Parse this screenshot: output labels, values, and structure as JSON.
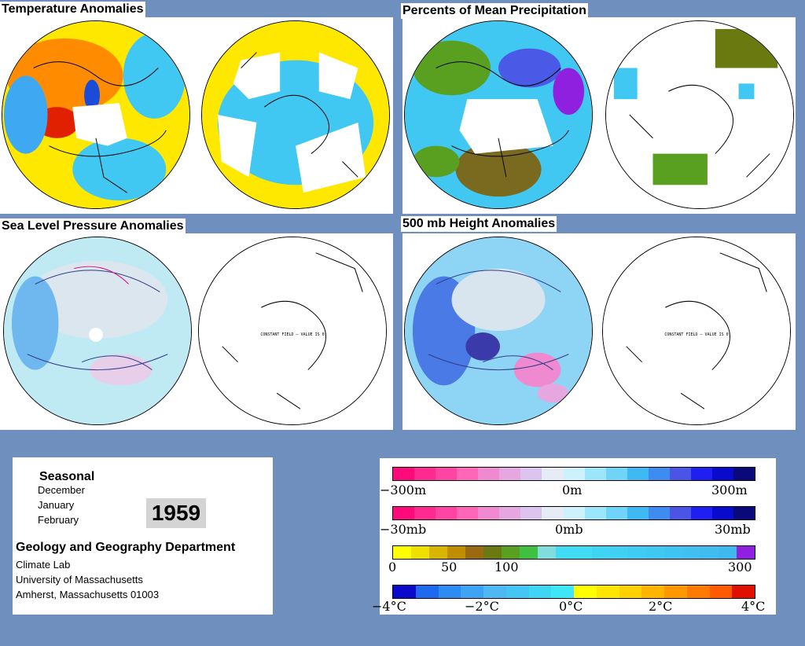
{
  "panels": {
    "temperature": {
      "title": "Temperature Anomalies"
    },
    "precipitation": {
      "title": "Percents of Mean Precipitation"
    },
    "slp": {
      "title": "Sea Level Pressure Anomalies",
      "right_note": "CONSTANT FIELD — VALUE IS 0"
    },
    "height500": {
      "title": "500 mb Height Anomalies",
      "right_note": "CONSTANT FIELD — VALUE IS 0"
    }
  },
  "info": {
    "season_label": "Seasonal",
    "months": [
      "December",
      "January",
      "February"
    ],
    "year": "1959",
    "department": "Geology and Geography Department",
    "lab": "Climate Lab",
    "university": "University of Massachusetts",
    "address": "Amherst, Massachusetts 01003"
  },
  "legend": {
    "height_scale": {
      "labels": [
        "−300m",
        "0m",
        "300m"
      ],
      "colors": [
        "#ff0a7a",
        "#ff2a8f",
        "#ff45a3",
        "#ff66b8",
        "#f08ad0",
        "#e6a6e0",
        "#ddc4ee",
        "#e6ecf6",
        "#cdf2fb",
        "#9be6fb",
        "#6fd4f7",
        "#3fb9f4",
        "#3e8cf0",
        "#4a55e6",
        "#1f1ff2",
        "#0a0acd",
        "#09097a"
      ]
    },
    "pressure_scale": {
      "labels": [
        "−30mb",
        "0mb",
        "30mb"
      ],
      "colors": [
        "#ff0a7a",
        "#ff2a8f",
        "#ff45a3",
        "#ff66b8",
        "#f08ad0",
        "#e6a6e0",
        "#ddc4ee",
        "#e6ecf6",
        "#cdf2fb",
        "#9be6fb",
        "#6fd4f7",
        "#3fb9f4",
        "#3e8cf0",
        "#4a55e6",
        "#1f1ff2",
        "#0a0acd",
        "#09097a"
      ]
    },
    "precip_scale": {
      "labels": [
        "0",
        "50",
        "100",
        "300"
      ],
      "colors": [
        "#ffff00",
        "#f0e000",
        "#d9b400",
        "#bf8e00",
        "#9a6a10",
        "#6a7a10",
        "#5aa020",
        "#40c040",
        "#7fdddd",
        "#3fdcf4",
        "#3fdcf4",
        "#3fd4f4",
        "#3fd0f4",
        "#3fccf2",
        "#3fc8f2",
        "#3fc4f2",
        "#3fc0f0",
        "#3fbcf0",
        "#3fb8f0",
        "#9020e0"
      ]
    },
    "temp_scale": {
      "labels": [
        "−4°C",
        "−2°C",
        "0°C",
        "2°C",
        "4°C"
      ],
      "colors": [
        "#0a0acd",
        "#1d6aef",
        "#2c8cf1",
        "#3ea3f3",
        "#4fb7f4",
        "#44c6f4",
        "#3fd6f4",
        "#3fe6f6",
        "#ffff00",
        "#ffe600",
        "#ffd000",
        "#ffb400",
        "#ff9800",
        "#ff7a00",
        "#ff5a00",
        "#e01000"
      ]
    }
  },
  "colors": {
    "background": "#6f8fbf"
  }
}
